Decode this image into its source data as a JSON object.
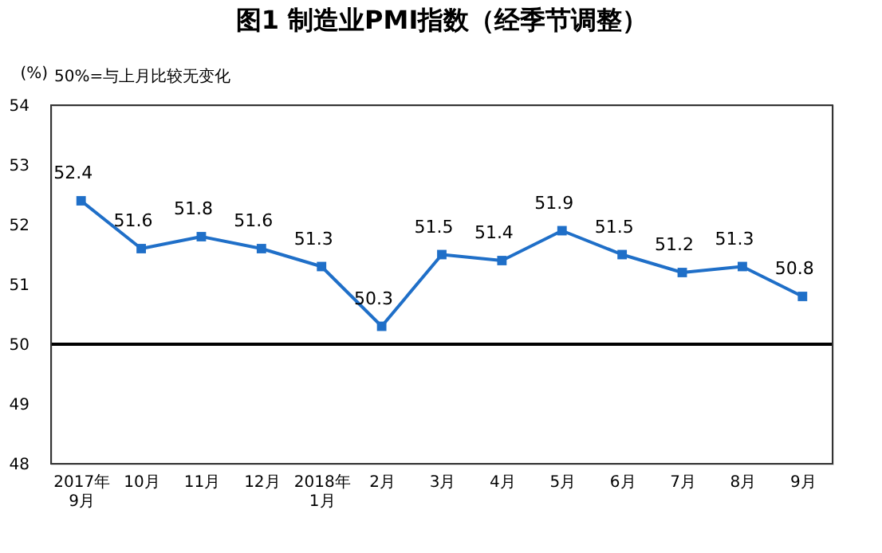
{
  "chart_data": {
    "type": "line",
    "title": "图1 制造业PMI指数（经季节调整）",
    "ylabel": "(%)",
    "annotations": [
      "50%=与上月比较无变化"
    ],
    "categories": [
      "2017年\n9月",
      "10月",
      "11月",
      "12月",
      "2018年\n1月",
      "2月",
      "3月",
      "4月",
      "5月",
      "6月",
      "7月",
      "8月",
      "9月"
    ],
    "series": [
      {
        "color": "#1f6fc8",
        "values": [
          52.4,
          51.6,
          51.8,
          51.6,
          51.3,
          50.3,
          51.5,
          51.4,
          51.9,
          51.5,
          51.2,
          51.3,
          50.8
        ]
      }
    ],
    "ylim": [
      48,
      54
    ],
    "yticks": [
      48,
      49,
      50,
      51,
      52,
      53,
      54
    ],
    "ref_lines": [
      {
        "axis": "y",
        "value": 50,
        "color": "#000000"
      }
    ],
    "grid": false,
    "marker": "square",
    "line_style": "solid",
    "data_labels": true
  }
}
